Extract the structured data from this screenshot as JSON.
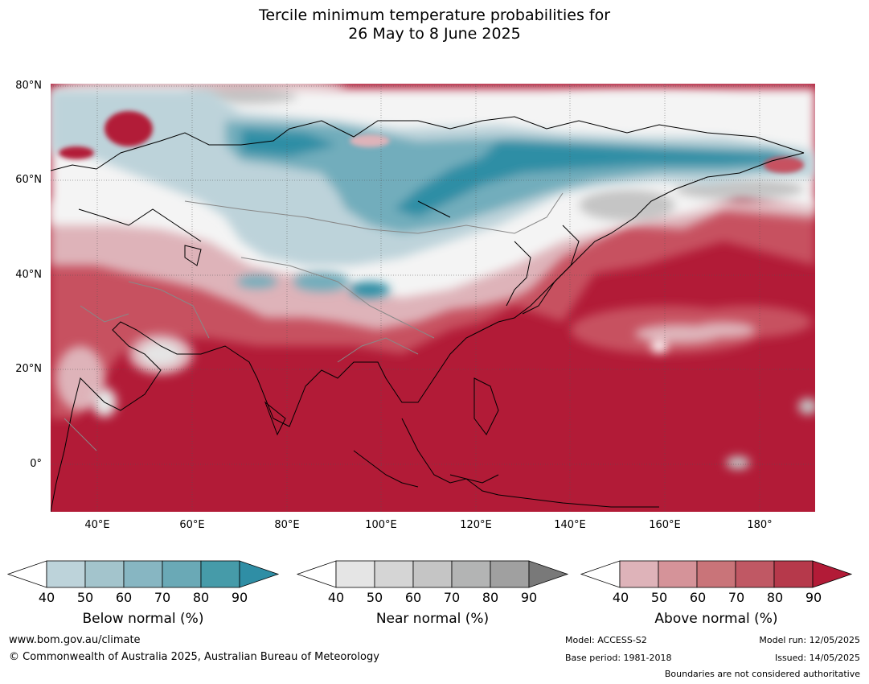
{
  "title_line1": "Tercile minimum temperature probabilities for",
  "title_line2": "26 May to 8 June 2025",
  "map": {
    "lat_labels": [
      "80°N",
      "60°N",
      "40°N",
      "20°N",
      "0°"
    ],
    "lon_labels": [
      "40°E",
      "60°E",
      "80°E",
      "100°E",
      "120°E",
      "140°E",
      "160°E",
      "180°"
    ],
    "colors": {
      "above_strong": "#b21b37",
      "above_mid": "#c75160",
      "above_light": "#deb3b9",
      "below_strong": "#2f8ea5",
      "below_mid": "#72adbc",
      "below_light": "#bdd3da",
      "near_light": "#e5e5e5",
      "near_mid": "#c5c5c5",
      "near_dark": "#888888"
    }
  },
  "colorbars": [
    {
      "name": "below",
      "label": "Below normal (%)",
      "ticks": [
        "40",
        "50",
        "60",
        "70",
        "80",
        "90"
      ],
      "colors": [
        "#bdd3da",
        "#a3c4cc",
        "#87b6c2",
        "#6aa9b6",
        "#469ba9",
        "#2f8ea5"
      ]
    },
    {
      "name": "near",
      "label": "Near normal (%)",
      "ticks": [
        "40",
        "50",
        "60",
        "70",
        "80",
        "90"
      ],
      "colors": [
        "#e5e5e5",
        "#d5d5d5",
        "#c5c5c5",
        "#b3b4b4",
        "#a0a0a0",
        "#797979"
      ]
    },
    {
      "name": "above",
      "label": "Above normal (%)",
      "ticks": [
        "40",
        "50",
        "60",
        "70",
        "80",
        "90"
      ],
      "colors": [
        "#deb3b9",
        "#d59399",
        "#c97479",
        "#c05864",
        "#b6394b",
        "#b21b37"
      ]
    }
  ],
  "footer": {
    "website": "www.bom.gov.au/climate",
    "copyright": "© Commonwealth of Australia 2025, Australian Bureau of Meteorology",
    "model": "Model: ACCESS-S2",
    "base_period": "Base period: 1981-2018",
    "model_run": "Model run: 12/05/2025",
    "issued": "Issued: 14/05/2025",
    "disclaimer": "Boundaries are not considered authoritative"
  }
}
